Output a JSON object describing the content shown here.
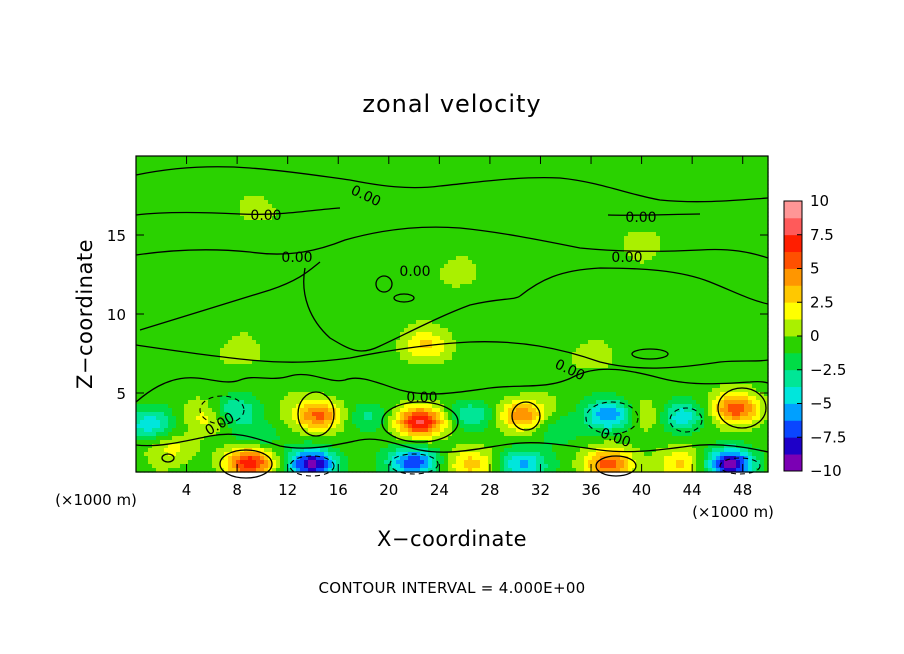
{
  "chart_data": {
    "type": "heatmap",
    "title": "zonal velocity",
    "xlabel": "X−coordinate",
    "ylabel": "Z−coordinate",
    "x_unit_left": "(×1000 m)",
    "x_unit_right": "(×1000 m)",
    "xlim": [
      0,
      50
    ],
    "ylim": [
      0,
      20
    ],
    "x_ticks": [
      "4",
      "8",
      "12",
      "16",
      "20",
      "24",
      "28",
      "32",
      "36",
      "40",
      "44",
      "48"
    ],
    "x_tick_values": [
      4,
      8,
      12,
      16,
      20,
      24,
      28,
      32,
      36,
      40,
      44,
      48
    ],
    "y_ticks": [
      "5",
      "10",
      "15"
    ],
    "y_tick_values": [
      5,
      10,
      15
    ],
    "colorbar": {
      "range": [
        -10,
        10
      ],
      "tick_labels": [
        "10",
        "7.5",
        "5",
        "2.5",
        "0",
        "−2.5",
        "−5",
        "−7.5",
        "−10"
      ],
      "tick_values": [
        10,
        7.5,
        5,
        2.5,
        0,
        -2.5,
        -5,
        -7.5,
        -10
      ],
      "colors": [
        "#7b00b4",
        "#1e00c8",
        "#0a46ff",
        "#00a0ff",
        "#00e6dc",
        "#00e696",
        "#00dc46",
        "#2ad200",
        "#aaf000",
        "#ffff00",
        "#ffc800",
        "#ff9600",
        "#ff5000",
        "#ff1e00",
        "#ff5a5a",
        "#ff9696"
      ]
    },
    "background_value": -0.5,
    "features": [
      {
        "x": 9.0,
        "z": 0.6,
        "value": 7.5
      },
      {
        "x": 14.0,
        "z": 0.5,
        "value": -8.5
      },
      {
        "x": 22.0,
        "z": 0.6,
        "value": -7.0
      },
      {
        "x": 26.5,
        "z": 0.5,
        "value": 4.0
      },
      {
        "x": 30.5,
        "z": 0.5,
        "value": -5.0
      },
      {
        "x": 37.5,
        "z": 0.5,
        "value": 6.0
      },
      {
        "x": 43.0,
        "z": 0.5,
        "value": 3.0
      },
      {
        "x": 47.0,
        "z": 0.5,
        "value": -8.5
      },
      {
        "x": 1.0,
        "z": 3.0,
        "value": -4.0
      },
      {
        "x": 3.0,
        "z": 1.5,
        "value": 2.0
      },
      {
        "x": 6.0,
        "z": 3.5,
        "value": 3.0
      },
      {
        "x": 7.5,
        "z": 3.8,
        "value": -4.0
      },
      {
        "x": 9.5,
        "z": 2.2,
        "value": -2.0
      },
      {
        "x": 14.5,
        "z": 3.6,
        "value": 6.0
      },
      {
        "x": 18.5,
        "z": 3.5,
        "value": -2.5
      },
      {
        "x": 22.5,
        "z": 3.2,
        "value": 8.5
      },
      {
        "x": 26.5,
        "z": 3.6,
        "value": -3.5
      },
      {
        "x": 30.5,
        "z": 3.6,
        "value": 5.5
      },
      {
        "x": 33.5,
        "z": 2.8,
        "value": -2.0
      },
      {
        "x": 37.5,
        "z": 3.6,
        "value": -5.5
      },
      {
        "x": 40.5,
        "z": 3.5,
        "value": 2.0
      },
      {
        "x": 43.0,
        "z": 3.5,
        "value": -4.0
      },
      {
        "x": 47.5,
        "z": 4.0,
        "value": 6.0
      },
      {
        "x": 23.0,
        "z": 8.0,
        "value": 3.0
      },
      {
        "x": 36.0,
        "z": 7.2,
        "value": 1.0
      },
      {
        "x": 8.0,
        "z": 7.5,
        "value": 1.0
      },
      {
        "x": 25.0,
        "z": 12.5,
        "value": 0.8
      },
      {
        "x": 10.0,
        "z": 16.5,
        "value": 0.8
      },
      {
        "x": 40.0,
        "z": 14.5,
        "value": 0.8
      }
    ],
    "contour_labels": [
      "0.00",
      "0.00",
      "0.00",
      "0.00",
      "0.00",
      "0.00",
      "0.00",
      "0.00",
      "0.00",
      "0.00"
    ]
  },
  "footer": "CONTOUR INTERVAL = 4.000E+00"
}
